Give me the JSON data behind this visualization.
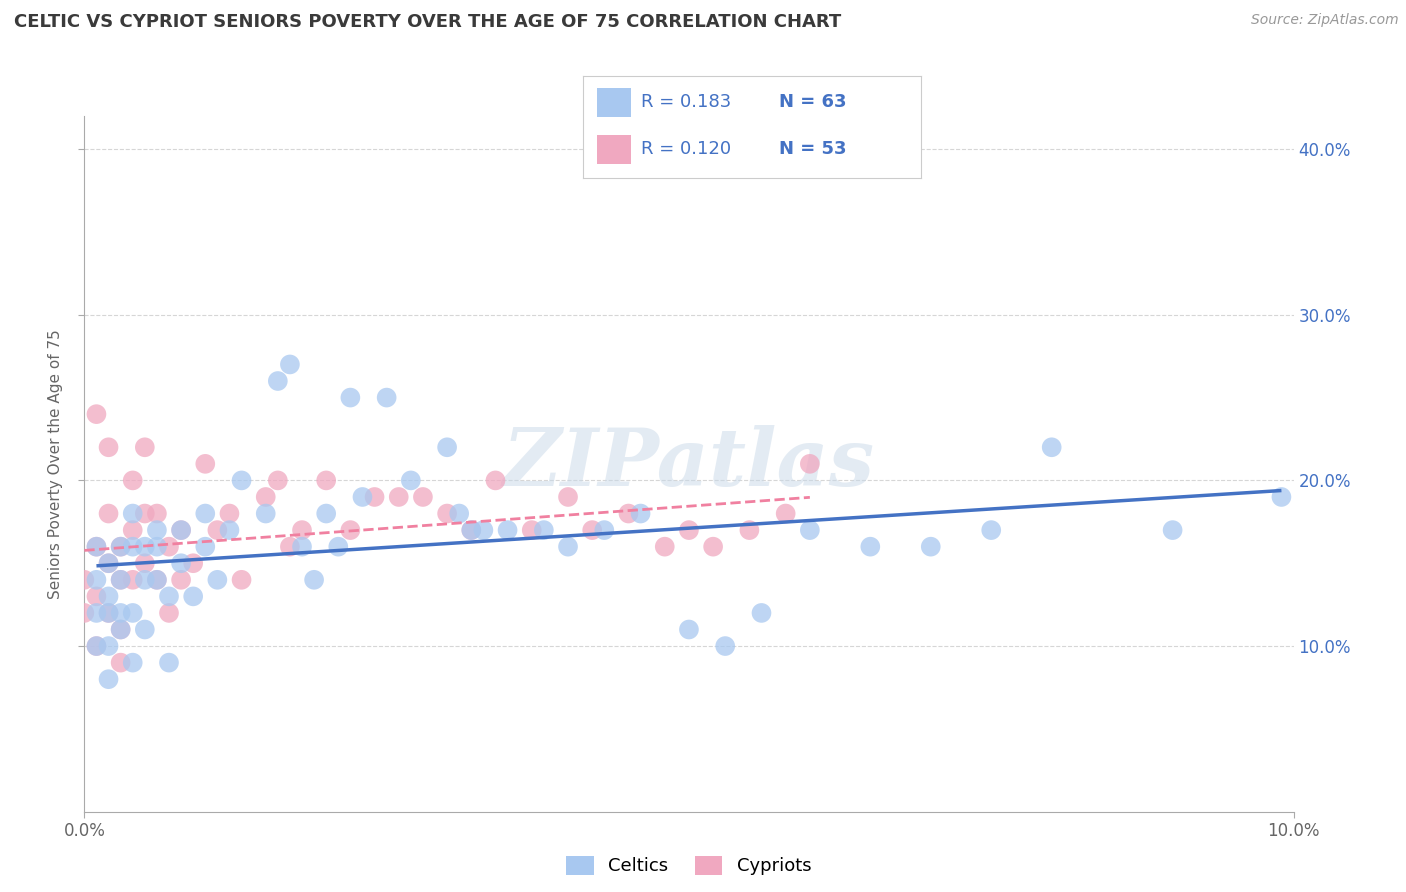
{
  "title": "CELTIC VS CYPRIOT SENIORS POVERTY OVER THE AGE OF 75 CORRELATION CHART",
  "source_text": "Source: ZipAtlas.com",
  "ylabel": "Seniors Poverty Over the Age of 75",
  "xlim": [
    0.0,
    0.1
  ],
  "ylim": [
    0.0,
    0.42
  ],
  "ytick_labels": [
    "10.0%",
    "20.0%",
    "30.0%",
    "40.0%"
  ],
  "ytick_positions": [
    0.1,
    0.2,
    0.3,
    0.4
  ],
  "title_color": "#3a3a3a",
  "watermark": "ZIPatlas",
  "legend_r1": "0.183",
  "legend_n1": "63",
  "legend_r2": "0.120",
  "legend_n2": "53",
  "celtic_color": "#a8c8f0",
  "cypriot_color": "#f0a8c0",
  "celtic_line_color": "#4472c4",
  "cypriot_line_color": "#f080a0",
  "label_color": "#4472c4",
  "background_color": "#ffffff",
  "grid_color": "#cccccc",
  "celtic_x": [
    0.001,
    0.001,
    0.001,
    0.001,
    0.002,
    0.002,
    0.002,
    0.002,
    0.002,
    0.003,
    0.003,
    0.003,
    0.003,
    0.004,
    0.004,
    0.004,
    0.004,
    0.005,
    0.005,
    0.005,
    0.006,
    0.006,
    0.006,
    0.007,
    0.007,
    0.008,
    0.008,
    0.009,
    0.01,
    0.01,
    0.011,
    0.012,
    0.013,
    0.015,
    0.016,
    0.017,
    0.018,
    0.019,
    0.02,
    0.021,
    0.022,
    0.023,
    0.025,
    0.027,
    0.03,
    0.031,
    0.032,
    0.033,
    0.035,
    0.038,
    0.04,
    0.043,
    0.046,
    0.05,
    0.053,
    0.056,
    0.06,
    0.065,
    0.07,
    0.075,
    0.08,
    0.09,
    0.099
  ],
  "celtic_y": [
    0.12,
    0.14,
    0.16,
    0.1,
    0.13,
    0.15,
    0.1,
    0.08,
    0.12,
    0.16,
    0.12,
    0.14,
    0.11,
    0.16,
    0.18,
    0.12,
    0.09,
    0.14,
    0.16,
    0.11,
    0.16,
    0.14,
    0.17,
    0.13,
    0.09,
    0.15,
    0.17,
    0.13,
    0.18,
    0.16,
    0.14,
    0.17,
    0.2,
    0.18,
    0.26,
    0.27,
    0.16,
    0.14,
    0.18,
    0.16,
    0.25,
    0.19,
    0.25,
    0.2,
    0.22,
    0.18,
    0.17,
    0.17,
    0.17,
    0.17,
    0.16,
    0.17,
    0.18,
    0.11,
    0.1,
    0.12,
    0.17,
    0.16,
    0.16,
    0.17,
    0.22,
    0.17,
    0.19
  ],
  "cypriot_x": [
    0.0,
    0.0,
    0.001,
    0.001,
    0.001,
    0.001,
    0.002,
    0.002,
    0.002,
    0.002,
    0.003,
    0.003,
    0.003,
    0.003,
    0.004,
    0.004,
    0.004,
    0.005,
    0.005,
    0.005,
    0.006,
    0.006,
    0.007,
    0.007,
    0.008,
    0.008,
    0.009,
    0.01,
    0.011,
    0.012,
    0.013,
    0.015,
    0.016,
    0.017,
    0.018,
    0.02,
    0.022,
    0.024,
    0.026,
    0.028,
    0.03,
    0.032,
    0.034,
    0.037,
    0.04,
    0.042,
    0.045,
    0.048,
    0.05,
    0.052,
    0.055,
    0.058,
    0.06
  ],
  "cypriot_y": [
    0.14,
    0.12,
    0.24,
    0.16,
    0.13,
    0.1,
    0.22,
    0.18,
    0.15,
    0.12,
    0.16,
    0.14,
    0.11,
    0.09,
    0.2,
    0.17,
    0.14,
    0.22,
    0.18,
    0.15,
    0.18,
    0.14,
    0.16,
    0.12,
    0.17,
    0.14,
    0.15,
    0.21,
    0.17,
    0.18,
    0.14,
    0.19,
    0.2,
    0.16,
    0.17,
    0.2,
    0.17,
    0.19,
    0.19,
    0.19,
    0.18,
    0.17,
    0.2,
    0.17,
    0.19,
    0.17,
    0.18,
    0.16,
    0.17,
    0.16,
    0.17,
    0.18,
    0.21
  ]
}
